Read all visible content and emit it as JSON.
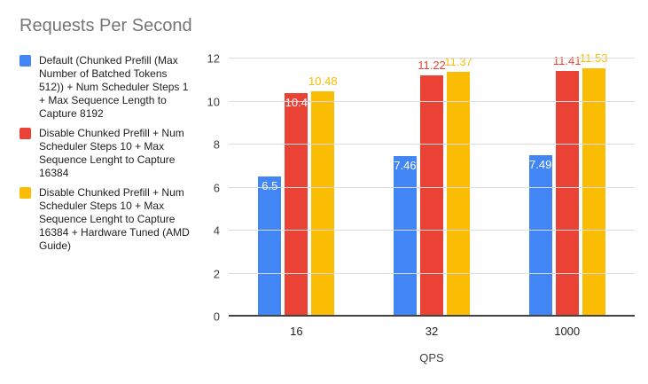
{
  "title": "Requests Per Second",
  "legend": {
    "position": "left",
    "items": [
      {
        "label": "Default (Chunked Prefill (Max Number of Batched Tokens 512)) + Num Scheduler Steps 1 + Max Sequence Length to Capture 8192",
        "color": "#4285F4"
      },
      {
        "label": "Disable Chunked Prefill + Num Scheduler Steps 10 + Max Sequence Lenght to Capture 16384",
        "color": "#EA4335"
      },
      {
        "label": "Disable Chunked Prefill + Num Scheduler Steps 10 + Max Sequence Lenght to Capture 16384 + Hardware Tuned (AMD Guide)",
        "color": "#FBBC04"
      }
    ]
  },
  "chart_data": {
    "type": "bar",
    "title": "Requests Per Second",
    "categories": [
      "16",
      "32",
      "1000"
    ],
    "series": [
      {
        "name": "Default (Chunked Prefill (Max Number of Batched Tokens 512)) + Num Scheduler Steps 1 + Max Sequence Length to Capture 8192",
        "color": "#4285F4",
        "values": [
          6.5,
          7.46,
          7.49
        ],
        "labels": [
          "6.5",
          "7.46",
          "7.49"
        ],
        "label_placement": [
          "inside",
          "inside",
          "inside"
        ]
      },
      {
        "name": "Disable Chunked Prefill + Num Scheduler Steps 10 + Max Sequence Lenght to Capture 16384",
        "color": "#EA4335",
        "values": [
          10.4,
          11.22,
          11.41
        ],
        "labels": [
          "10.4",
          "11.22",
          "11.41"
        ],
        "label_placement": [
          "inside",
          "above",
          "above"
        ]
      },
      {
        "name": "Disable Chunked Prefill + Num Scheduler Steps 10 + Max Sequence Lenght to Capture 16384 + Hardware Tuned (AMD Guide)",
        "color": "#FBBC04",
        "values": [
          10.48,
          11.37,
          11.53
        ],
        "labels": [
          "10.48",
          "11.37",
          "11.53"
        ],
        "label_placement": [
          "above",
          "above",
          "above"
        ]
      }
    ],
    "xlabel": "QPS",
    "ylabel": "",
    "ylim": [
      0,
      12
    ],
    "yticks": [
      0,
      2,
      4,
      6,
      8,
      10,
      12
    ],
    "grid": true,
    "legend_position": "left"
  },
  "colors": {
    "background": "#ffffff",
    "title_text": "#757575",
    "grid_line": "#dadce0",
    "axis_line": "#424242",
    "tick_label": "#424242",
    "data_label_inside": "#ffffff"
  }
}
